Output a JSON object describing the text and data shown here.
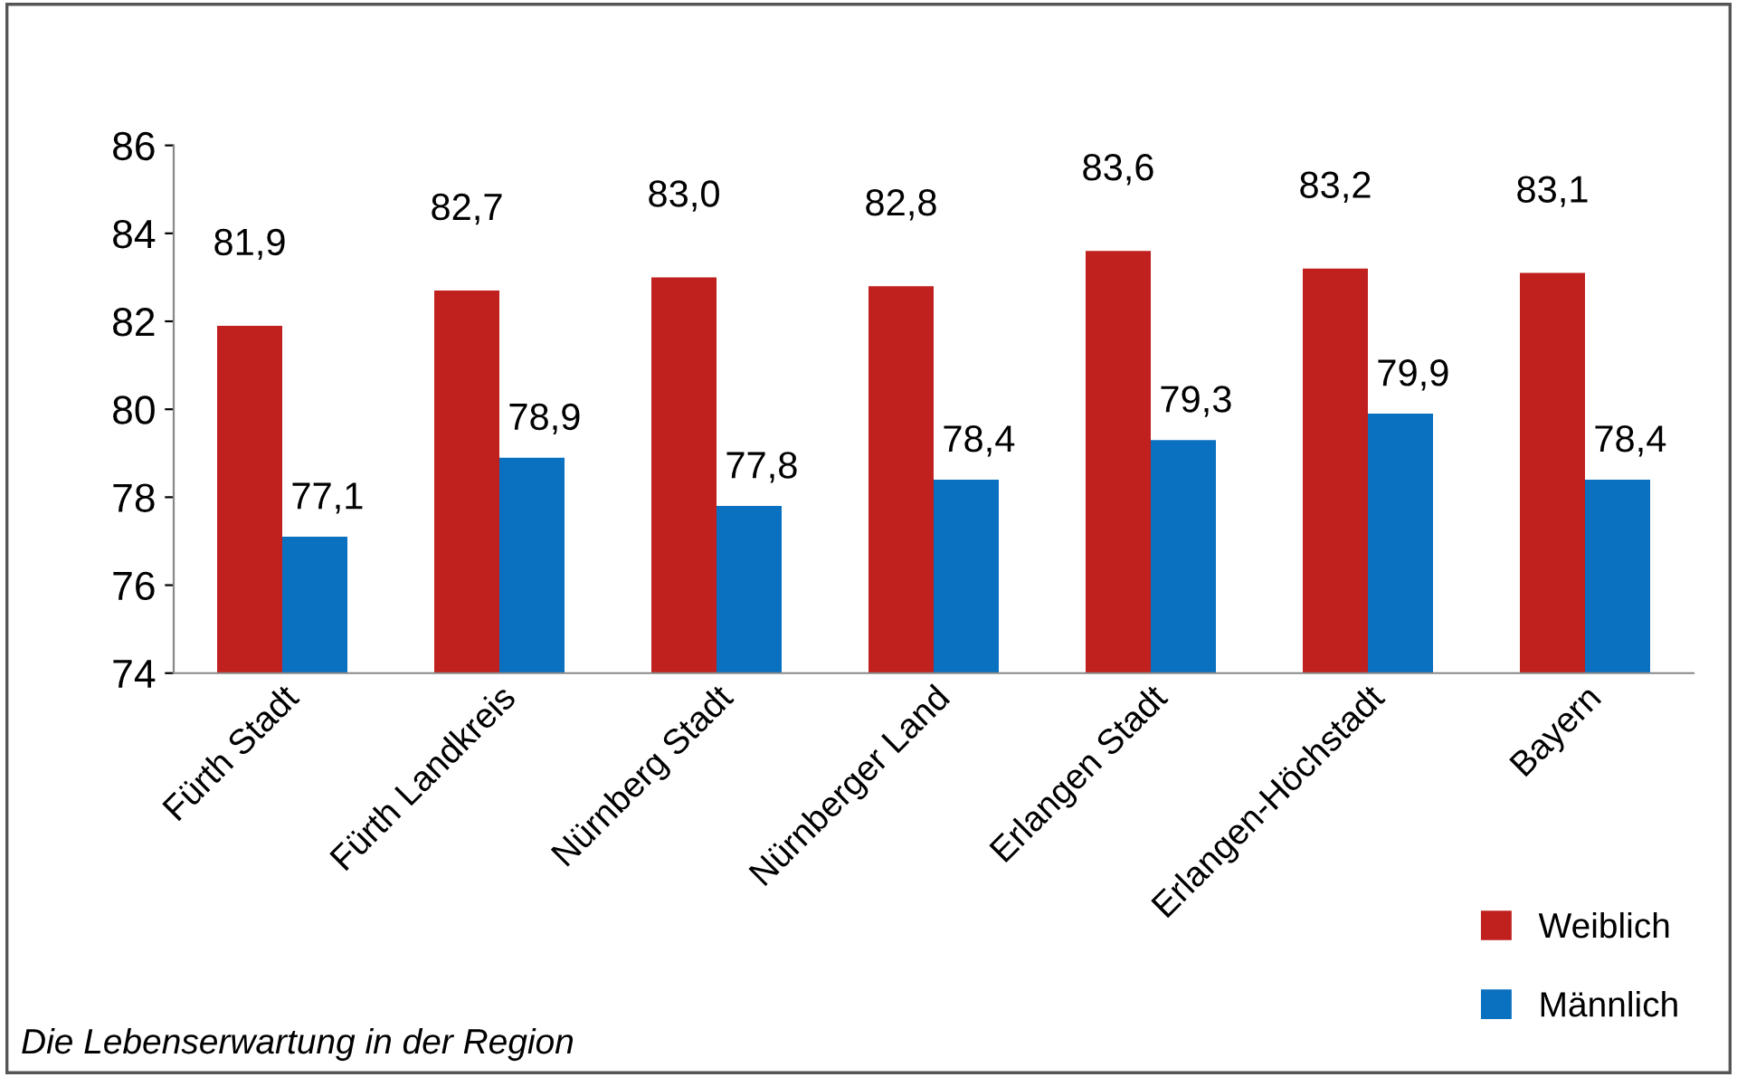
{
  "chart_data": {
    "type": "bar",
    "categories": [
      "Fürth Stadt",
      "Fürth Landkreis",
      "Nürnberg Stadt",
      "Nürnberger Land",
      "Erlangen Stadt",
      "Erlangen-Höchstadt",
      "Bayern"
    ],
    "series": [
      {
        "name": "Weiblich",
        "color": "#c0211f",
        "values": [
          81.9,
          82.7,
          83.0,
          82.8,
          83.6,
          83.2,
          83.1
        ],
        "value_labels": [
          "81,9",
          "82,7",
          "83,0",
          "82,8",
          "83,6",
          "83,2",
          "83,1"
        ]
      },
      {
        "name": "Männlich",
        "color": "#0a70c0",
        "values": [
          77.1,
          78.9,
          77.8,
          78.4,
          79.3,
          79.9,
          78.4
        ],
        "value_labels": [
          "77,1",
          "78,9",
          "77,8",
          "78,4",
          "79,3",
          "79,9",
          "78,4"
        ]
      }
    ],
    "ylim": [
      74,
      86
    ],
    "yticks": [
      74,
      76,
      78,
      80,
      82,
      84,
      86
    ],
    "grid": false,
    "legend": "bottom right",
    "annotations": [
      "Die Lebenserwartung in der Region"
    ]
  }
}
